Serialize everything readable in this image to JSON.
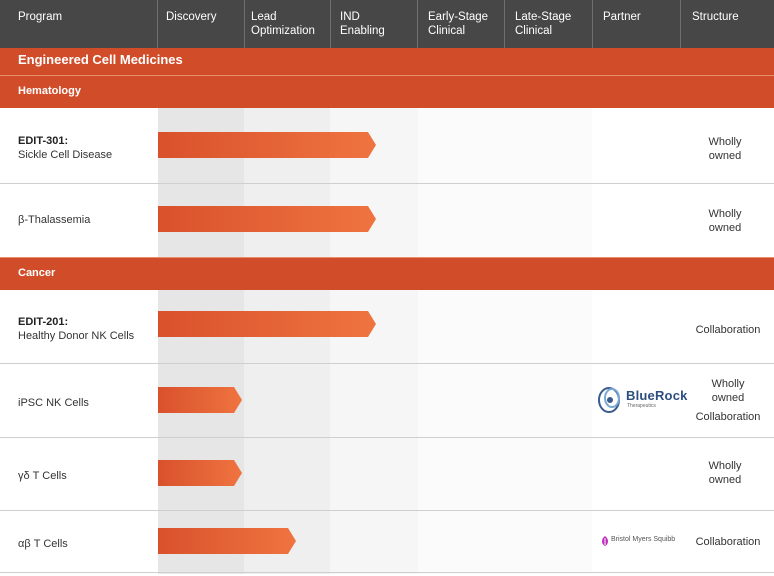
{
  "header": {
    "columns": [
      {
        "line1": "Program",
        "line2": ""
      },
      {
        "line1": "Discovery",
        "line2": ""
      },
      {
        "line1": "Lead",
        "line2": "Optimization"
      },
      {
        "line1": "IND",
        "line2": "Enabling"
      },
      {
        "line1": "Early-Stage",
        "line2": "Clinical"
      },
      {
        "line1": "Late-Stage",
        "line2": "Clinical"
      },
      {
        "line1": "Partner",
        "line2": ""
      },
      {
        "line1": "Structure",
        "line2": ""
      }
    ]
  },
  "section_title": "Engineered Cell Medicines",
  "groups": [
    {
      "title": "Hematology"
    },
    {
      "title": "Cancer"
    }
  ],
  "programs": [
    {
      "name": "EDIT-301:",
      "desc": "Sickle Cell Disease",
      "stage": "IND Enabling",
      "structure": [
        "Wholly",
        "owned"
      ],
      "partner": ""
    },
    {
      "name": "",
      "desc": "β-Thalassemia",
      "stage": "IND Enabling",
      "structure": [
        "Wholly",
        "owned"
      ],
      "partner": ""
    },
    {
      "name": "EDIT-201:",
      "desc": "Healthy Donor NK Cells",
      "stage": "IND Enabling",
      "structure": [
        "Collaboration"
      ],
      "partner": ""
    },
    {
      "name": "",
      "desc": "iPSC NK Cells",
      "stage": "Discovery",
      "structure": [
        "Wholly",
        "owned",
        "Collaboration"
      ],
      "partner": "BlueRock"
    },
    {
      "name": "",
      "desc": "γδ T Cells",
      "stage": "Discovery",
      "structure": [
        "Wholly",
        "owned"
      ],
      "partner": ""
    },
    {
      "name": "",
      "desc": "αβ T Cells",
      "stage": "Lead Optimization",
      "structure": [
        "Collaboration"
      ],
      "partner": "Bristol Myers Squibb"
    }
  ],
  "partners": {
    "bluerock": {
      "name": "BlueRock",
      "tagline": "Therapeutics"
    },
    "bms": {
      "name": "Bristol Myers Squibb"
    }
  },
  "colors": {
    "header": "#474747",
    "section": "#d14d2a",
    "bar_start": "#d9512c",
    "bar_end": "#ef7440"
  }
}
